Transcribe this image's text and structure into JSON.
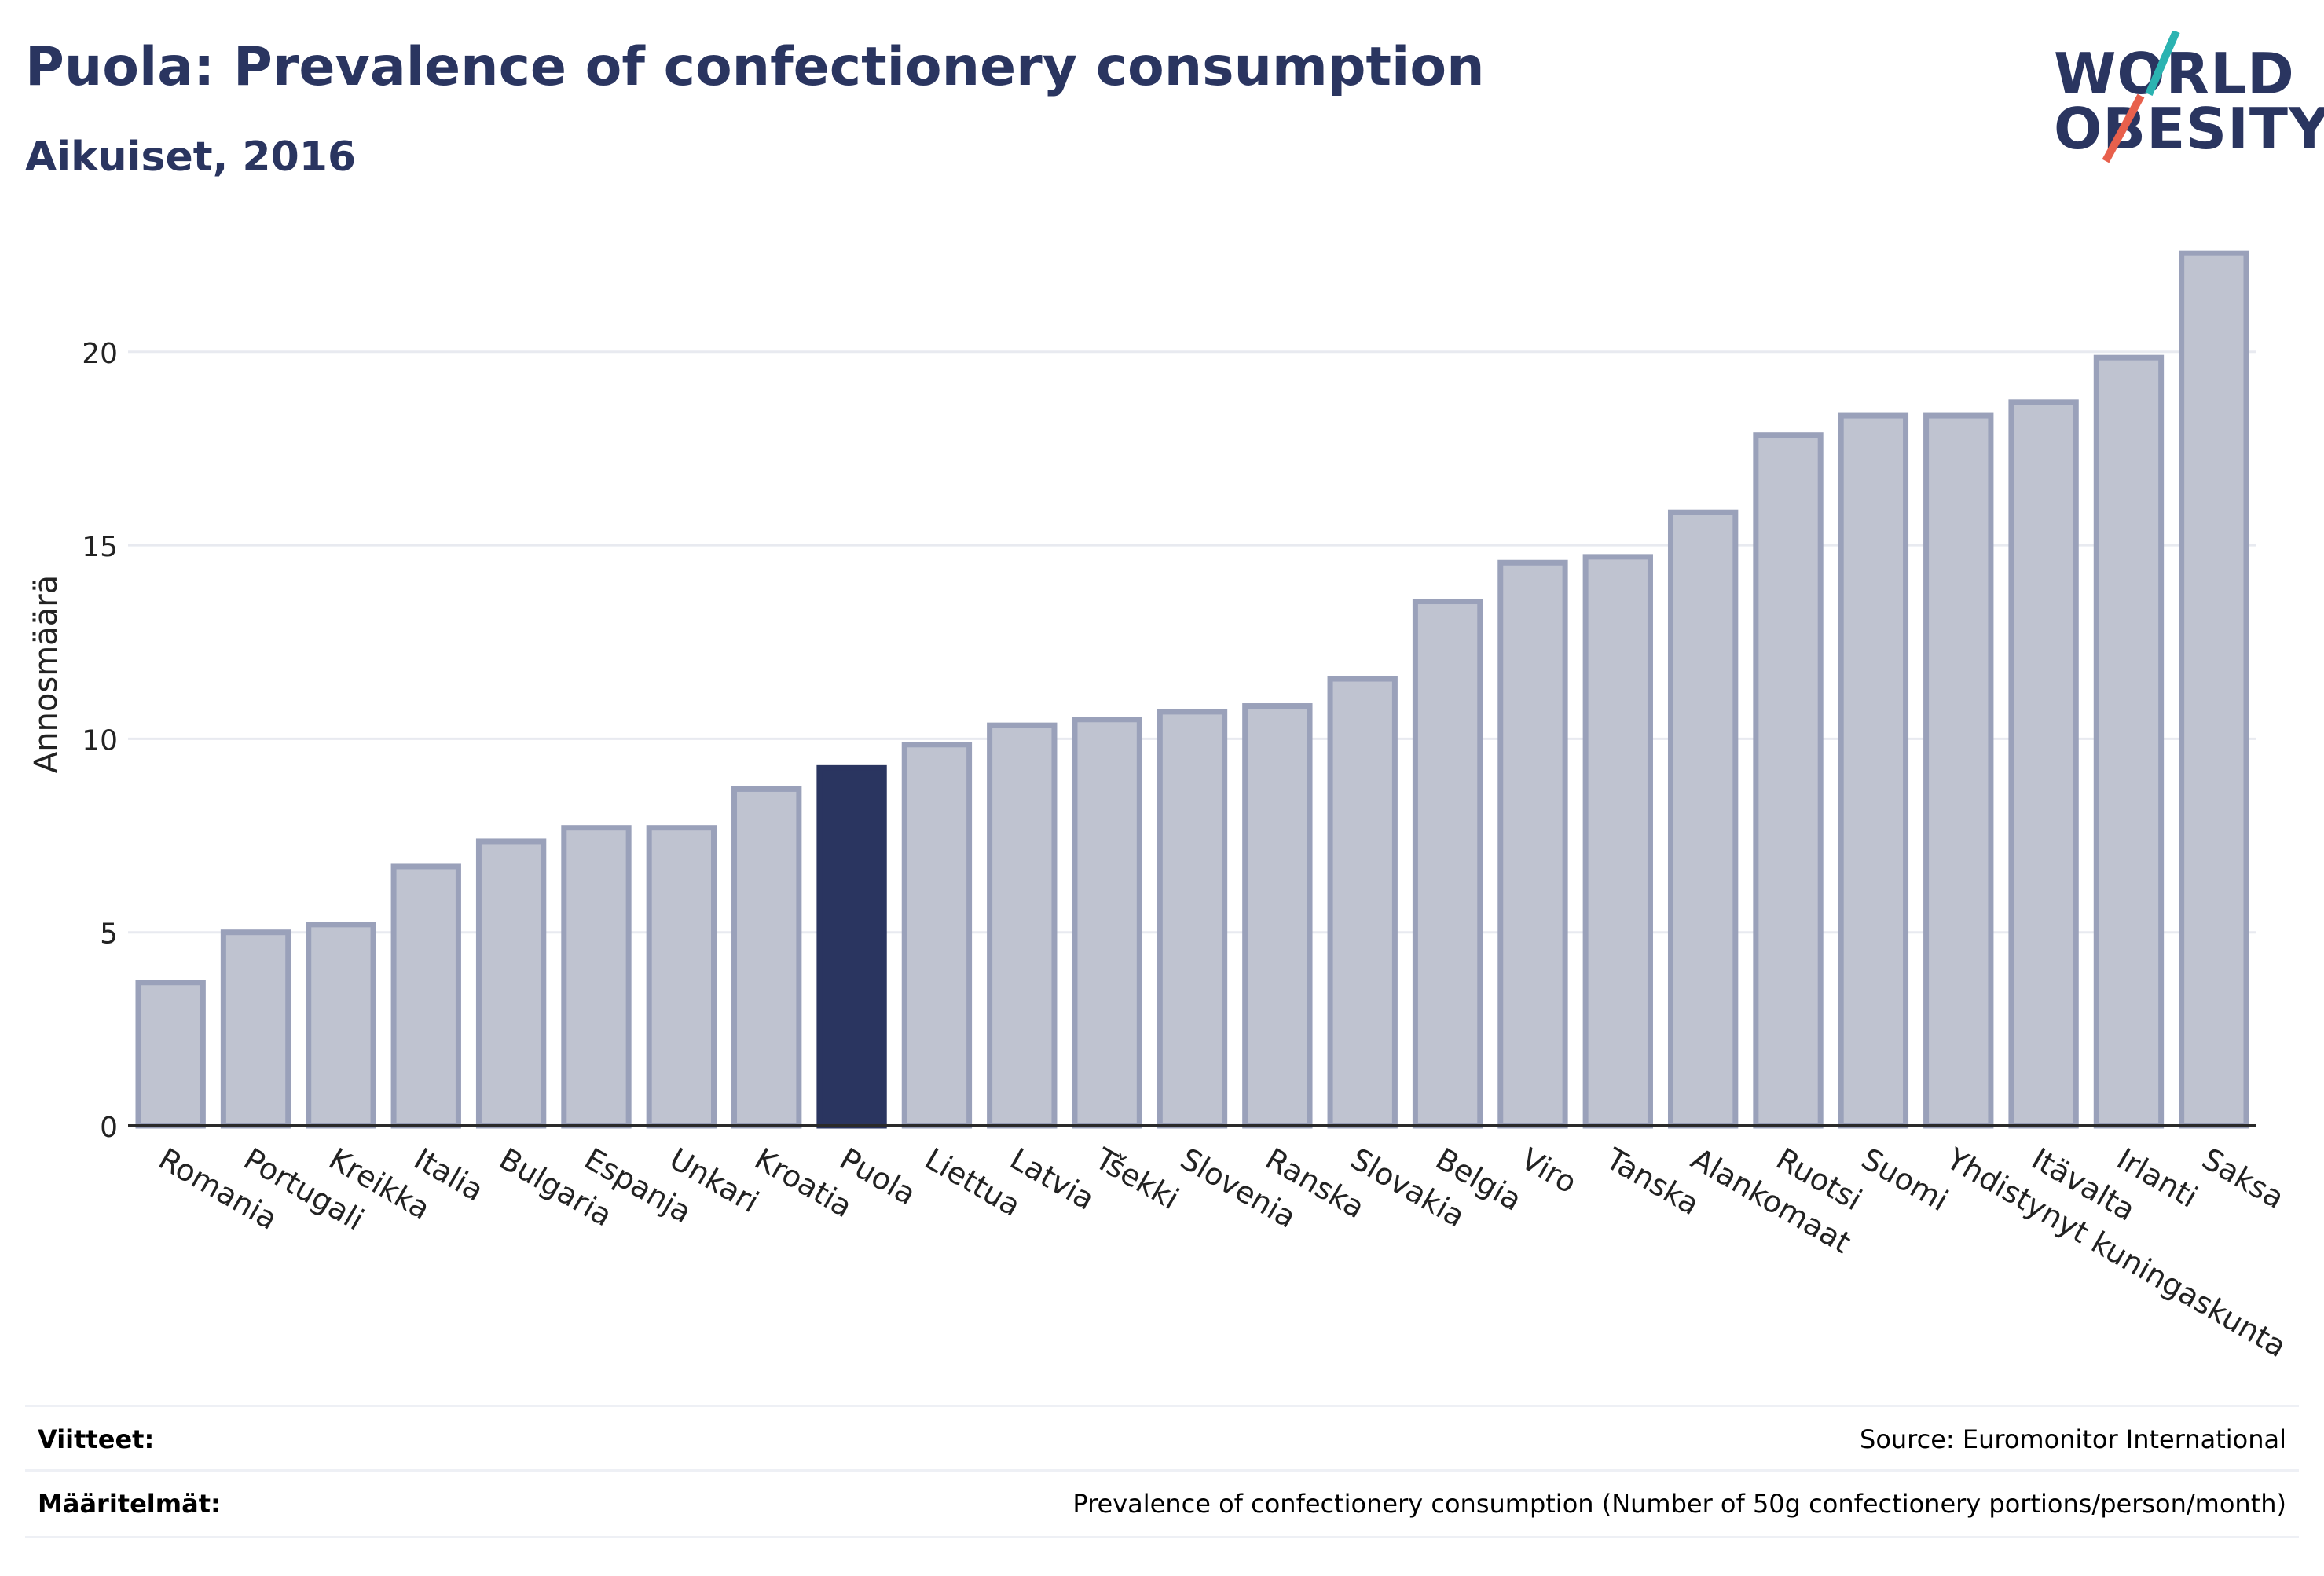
{
  "header": {
    "title": "Puola: Prevalence of confectionery consumption",
    "subtitle": "Aikuiset, 2016"
  },
  "logo": {
    "line1": "WORLD",
    "line2": "OBESITY",
    "stripe_teal": "#2bb3b1",
    "stripe_red": "#e8604c"
  },
  "colors": {
    "bar": "#bfc3d0",
    "bar_border": "#9aa1ba",
    "highlight": "#2a3560",
    "grid": "#e8eaf0",
    "axis": "#2a2a2a"
  },
  "chart_data": {
    "type": "bar",
    "ylabel": "Annosmäärä",
    "xlabel": "",
    "ylim": [
      0,
      23
    ],
    "yticks": [
      0,
      5,
      10,
      15,
      20
    ],
    "grid": true,
    "highlight": "Puola",
    "categories": [
      "Romania",
      "Portugali",
      "Kreikka",
      "Italia",
      "Bulgaria",
      "Espanja",
      "Unkari",
      "Kroatia",
      "Puola",
      "Liettua",
      "Latvia",
      "Tšekki",
      "Slovenia",
      "Ranska",
      "Slovakia",
      "Belgia",
      "Viro",
      "Tanska",
      "Alankomaat",
      "Ruotsi",
      "Suomi",
      "Yhdistynyt kuningaskunta",
      "Itävalta",
      "Irlanti",
      "Saksa"
    ],
    "values": [
      3.7,
      5.0,
      5.2,
      6.7,
      7.35,
      7.7,
      7.7,
      8.7,
      9.25,
      9.85,
      10.35,
      10.5,
      10.7,
      10.85,
      11.55,
      13.55,
      14.55,
      14.7,
      15.85,
      17.85,
      18.35,
      18.35,
      18.7,
      19.85,
      22.55
    ]
  },
  "footer": {
    "references_label": "Viitteet:",
    "references_value": "Source: Euromonitor International",
    "definitions_label": "Määritelmät:",
    "definitions_value": "Prevalence of confectionery consumption (Number of 50g confectionery portions/person/month)"
  }
}
